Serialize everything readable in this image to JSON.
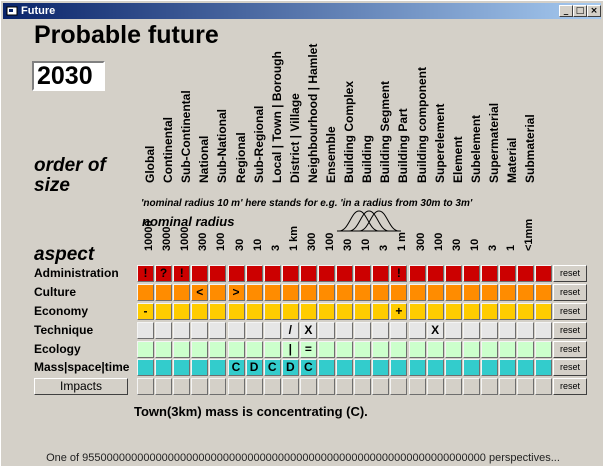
{
  "window": {
    "title": "Future",
    "controls": [
      "_",
      "□",
      "×"
    ]
  },
  "heading": "Probable future",
  "year": "2030",
  "order_label": [
    "order of",
    "size"
  ],
  "aspect_label": "aspect",
  "sizes": [
    "Global",
    "Continental",
    "Sub-Continental",
    "National",
    "Sub-National",
    "Regional",
    "Sub-Regional",
    "Local | Town | Borough",
    "District | Village",
    "Neighbourhood | Hamlet",
    "Ensemble",
    "Building Complex",
    "Building",
    "Building Segment",
    "Building Part",
    "Building component",
    "Superelement",
    "Element",
    "Subelement",
    "Supermaterial",
    "Material",
    "Submaterial"
  ],
  "note": "'nominal radius 10 m' here stands for e.g. 'in a radius from 30m to 3m'",
  "nominal_radius_label": "nominal radius",
  "radius": [
    "10000",
    "3000",
    "1000",
    "300",
    "100",
    "30",
    "10",
    "3",
    "1 km",
    "300",
    "100",
    "30",
    "10",
    "3",
    "1 m",
    "300",
    "100",
    "30",
    "10",
    "3",
    "1",
    "<1mm"
  ],
  "rows": [
    {
      "label": "Administration",
      "color": "#cc0000",
      "cells": [
        "!",
        "?",
        "!",
        "",
        "",
        "",
        "",
        "",
        "",
        "",
        "",
        "",
        "",
        "",
        "!",
        "",
        "",
        "",
        "",
        "",
        "",
        "",
        ""
      ]
    },
    {
      "label": "Culture",
      "color": "#ff8c00",
      "cells": [
        "",
        "",
        "",
        "<",
        "",
        ">",
        "",
        "",
        "",
        "",
        "",
        "",
        "",
        "",
        "",
        "",
        "",
        "",
        "",
        "",
        "",
        "",
        ""
      ]
    },
    {
      "label": "Economy",
      "color": "#ffcc00",
      "cells": [
        "-",
        "",
        "",
        "",
        "",
        "",
        "",
        "",
        "",
        "",
        "",
        "",
        "",
        "",
        "+",
        "",
        "",
        "",
        "",
        "",
        "",
        "",
        ""
      ]
    },
    {
      "label": "Technique",
      "color": "#e6e6e6",
      "cells": [
        "",
        "",
        "",
        "",
        "",
        "",
        "",
        "",
        "/",
        "X",
        "",
        "",
        "",
        "",
        "",
        "",
        "X",
        "",
        "",
        "",
        "",
        "",
        ""
      ]
    },
    {
      "label": "Ecology",
      "color": "#ccffcc",
      "cells": [
        "",
        "",
        "",
        "",
        "",
        "",
        "",
        "",
        "|",
        "=",
        "",
        "",
        "",
        "",
        "",
        "",
        "",
        "",
        "",
        "",
        "",
        "",
        ""
      ]
    },
    {
      "label": "Mass|space|time",
      "color": "#33cccc",
      "cells": [
        "",
        "",
        "",
        "",
        "",
        "C",
        "D",
        "C",
        "D",
        "C",
        "",
        "",
        "",
        "",
        "",
        "",
        "",
        "",
        "",
        "",
        "",
        "",
        ""
      ]
    },
    {
      "label": "",
      "color": "#d4d0c8",
      "cells": [
        "",
        "",
        "",
        "",
        "",
        "",
        "",
        "",
        "",
        "",
        "",
        "",
        "",
        "",
        "",
        "",
        "",
        "",
        "",
        "",
        "",
        "",
        ""
      ]
    }
  ],
  "impacts_button": "Impacts",
  "reset_label": "reset",
  "status": "Town(3km) mass is concentrating (C).",
  "footer": "One of 955000000000000000000000000000000000000000000000000000000000000000 perspectives..."
}
